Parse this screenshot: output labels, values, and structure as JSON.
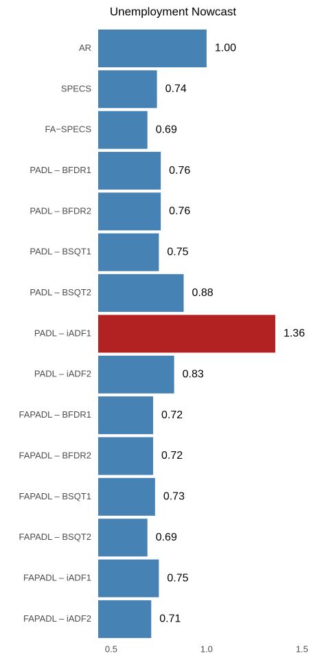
{
  "chart_data": {
    "type": "barh",
    "title": "Unemployment Nowcast",
    "categories": [
      "AR",
      "SPECS",
      "FA−SPECS",
      "PADL – BFDR1",
      "PADL – BFDR2",
      "PADL – BSQT1",
      "PADL – BSQT2",
      "PADL – iADF1",
      "PADL – iADF2",
      "FAPADL – BFDR1",
      "FAPADL – BFDR2",
      "FAPADL – BSQT1",
      "FAPADL – BSQT2",
      "FAPADL – iADF1",
      "FAPADL – iADF2"
    ],
    "values": [
      1.0,
      0.74,
      0.69,
      0.76,
      0.76,
      0.75,
      0.88,
      1.36,
      0.83,
      0.72,
      0.72,
      0.73,
      0.69,
      0.75,
      0.71
    ],
    "value_labels": [
      "1.00",
      "0.74",
      "0.69",
      "0.76",
      "0.76",
      "0.75",
      "0.88",
      "1.36",
      "0.83",
      "0.72",
      "0.72",
      "0.73",
      "0.69",
      "0.75",
      "0.71"
    ],
    "colors": [
      "#4682b4",
      "#4682b4",
      "#4682b4",
      "#4682b4",
      "#4682b4",
      "#4682b4",
      "#4682b4",
      "#b22222",
      "#4682b4",
      "#4682b4",
      "#4682b4",
      "#4682b4",
      "#4682b4",
      "#4682b4",
      "#4682b4"
    ],
    "xlim": [
      0.432,
      1.54
    ],
    "xticks": [
      0.5,
      {
        "value": 1.0,
        "label": "1.0"
      },
      {
        "value": 1.5,
        "label": "1.5"
      }
    ],
    "grid": false
  }
}
